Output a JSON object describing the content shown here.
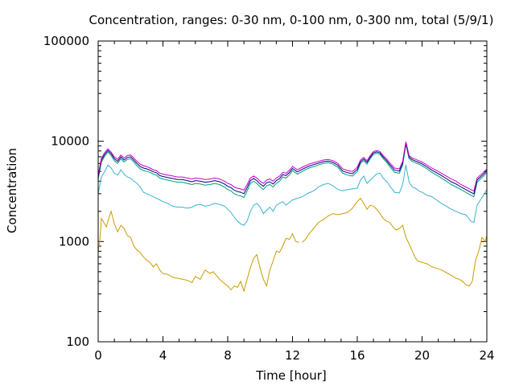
{
  "chart_data": {
    "type": "line",
    "title": "Concentration, ranges: 0-30 nm, 0-100 nm, 0-300 nm, total (5/9/1)",
    "xlabel": "Time [hour]",
    "ylabel": "Concentration",
    "xlim": [
      0,
      24
    ],
    "ylim": [
      100,
      100000
    ],
    "yscale": "log",
    "xticks": [
      "0",
      "4",
      "8",
      "12",
      "16",
      "20",
      "24"
    ],
    "yticks": [
      "100",
      "1000",
      "10000",
      "100000"
    ],
    "grid": false,
    "legend": "none",
    "series": [
      {
        "color": "#cc9a00",
        "x": [
          0,
          0.1,
          0.2,
          0.3,
          0.5,
          0.7,
          0.8,
          1.0,
          1.2,
          1.4,
          1.6,
          1.8,
          2.0,
          2.2,
          2.4,
          2.6,
          2.8,
          3.0,
          3.2,
          3.4,
          3.6,
          3.8,
          4.0,
          4.3,
          4.6,
          4.9,
          5.2,
          5.5,
          5.8,
          6.0,
          6.3,
          6.6,
          6.9,
          7.1,
          7.3,
          7.5,
          7.8,
          8.0,
          8.2,
          8.4,
          8.6,
          8.8,
          9.0,
          9.2,
          9.4,
          9.6,
          9.8,
          10.0,
          10.2,
          10.4,
          10.6,
          10.8,
          11.0,
          11.2,
          11.4,
          11.6,
          11.8,
          12.0,
          12.2,
          12.4,
          12.5,
          12.6,
          12.8,
          13.0,
          13.3,
          13.6,
          13.9,
          14.2,
          14.5,
          14.8,
          15.1,
          15.4,
          15.7,
          16.0,
          16.2,
          16.4,
          16.6,
          16.8,
          17.0,
          17.2,
          17.4,
          17.6,
          17.8,
          18.0,
          18.2,
          18.4,
          18.6,
          18.8,
          19.0,
          19.2,
          19.4,
          19.6,
          19.8,
          20.0,
          20.3,
          20.6,
          20.9,
          21.2,
          21.5,
          21.8,
          22.1,
          22.3,
          22.5,
          22.7,
          22.9,
          23.1,
          23.3,
          23.5,
          23.7,
          23.9,
          24.0
        ],
        "values": [
          800,
          1000,
          1700,
          1600,
          1400,
          1800,
          2000,
          1500,
          1250,
          1450,
          1350,
          1150,
          1100,
          900,
          820,
          780,
          700,
          650,
          620,
          560,
          600,
          520,
          480,
          470,
          440,
          430,
          420,
          410,
          390,
          450,
          420,
          520,
          480,
          500,
          460,
          420,
          380,
          360,
          330,
          360,
          350,
          400,
          320,
          420,
          550,
          680,
          740,
          540,
          420,
          360,
          520,
          640,
          800,
          780,
          900,
          1080,
          1050,
          1200,
          1000,
          980,
          null,
          980,
          1050,
          1180,
          1350,
          1550,
          1650,
          1800,
          1900,
          1850,
          1900,
          1950,
          2150,
          2500,
          2700,
          2400,
          2100,
          2300,
          2250,
          2100,
          1900,
          1700,
          1600,
          1550,
          1400,
          1300,
          1350,
          1450,
          1100,
          950,
          800,
          680,
          630,
          620,
          600,
          560,
          540,
          520,
          490,
          460,
          430,
          420,
          400,
          370,
          360,
          400,
          650,
          800,
          1100,
          1000,
          1150
        ]
      },
      {
        "color": "#3ab0d8",
        "x": [
          0,
          0.2,
          0.4,
          0.6,
          0.8,
          1.0,
          1.2,
          1.4,
          1.6,
          1.8,
          2.0,
          2.2,
          2.4,
          2.6,
          2.8,
          3.0,
          3.2,
          3.4,
          3.6,
          3.8,
          4.0,
          4.3,
          4.6,
          4.9,
          5.2,
          5.5,
          5.8,
          6.0,
          6.3,
          6.6,
          6.9,
          7.2,
          7.5,
          7.8,
          8.0,
          8.2,
          8.4,
          8.6,
          8.8,
          9.0,
          9.2,
          9.4,
          9.6,
          9.8,
          10.0,
          10.2,
          10.4,
          10.6,
          10.8,
          11.0,
          11.2,
          11.4,
          11.6,
          11.8,
          12.0,
          12.3,
          12.6,
          13.0,
          13.3,
          13.6,
          13.9,
          14.2,
          14.5,
          14.8,
          15.1,
          15.4,
          15.7,
          16.0,
          16.2,
          16.4,
          16.6,
          16.8,
          17.0,
          17.2,
          17.4,
          17.6,
          17.8,
          18.0,
          18.3,
          18.6,
          18.8,
          19.0,
          19.2,
          19.4,
          19.6,
          19.8,
          20.0,
          20.3,
          20.6,
          20.9,
          21.2,
          21.5,
          21.8,
          22.1,
          22.4,
          22.7,
          23.0,
          23.2,
          23.4,
          23.6,
          23.8,
          24.0
        ],
        "values": [
          3000,
          4400,
          5000,
          5800,
          5400,
          4800,
          4600,
          5200,
          4700,
          4400,
          4300,
          4000,
          3800,
          3500,
          3100,
          3000,
          2900,
          2800,
          2700,
          2600,
          2500,
          2400,
          2250,
          2200,
          2200,
          2150,
          2200,
          2300,
          2350,
          2250,
          2300,
          2400,
          2350,
          2250,
          2100,
          1950,
          1750,
          1600,
          1500,
          1450,
          1600,
          2000,
          2300,
          2400,
          2200,
          1900,
          2050,
          2200,
          2000,
          2300,
          2400,
          2500,
          2300,
          2450,
          2600,
          2700,
          2800,
          3050,
          3200,
          3500,
          3700,
          3800,
          3600,
          3300,
          3200,
          3300,
          3350,
          3400,
          4100,
          4500,
          3800,
          4100,
          4400,
          4700,
          4800,
          4300,
          4000,
          3600,
          3100,
          3050,
          3700,
          5800,
          3900,
          3500,
          3400,
          3200,
          3100,
          2900,
          2800,
          2600,
          2400,
          2250,
          2100,
          2000,
          1900,
          1850,
          1600,
          1550,
          2300,
          2600,
          2900,
          3300
        ]
      },
      {
        "color": "#009e73",
        "x": [
          0,
          0.2,
          0.4,
          0.6,
          0.8,
          1.0,
          1.2,
          1.4,
          1.6,
          1.8,
          2.0,
          2.2,
          2.4,
          2.6,
          2.8,
          3.0,
          3.2,
          3.4,
          3.6,
          3.8,
          4.0,
          4.3,
          4.6,
          4.9,
          5.2,
          5.5,
          5.8,
          6.0,
          6.3,
          6.6,
          6.9,
          7.2,
          7.5,
          7.8,
          8.0,
          8.2,
          8.4,
          8.6,
          8.8,
          9.0,
          9.2,
          9.4,
          9.6,
          9.8,
          10.0,
          10.2,
          10.4,
          10.6,
          10.8,
          11.0,
          11.2,
          11.4,
          11.6,
          11.8,
          12.0,
          12.3,
          12.6,
          13.0,
          13.3,
          13.6,
          13.9,
          14.2,
          14.5,
          14.8,
          15.1,
          15.4,
          15.7,
          16.0,
          16.2,
          16.4,
          16.6,
          16.8,
          17.0,
          17.2,
          17.4,
          17.6,
          17.8,
          18.0,
          18.3,
          18.6,
          18.8,
          19.0,
          19.2,
          19.4,
          19.6,
          19.8,
          20.0,
          20.3,
          20.6,
          20.9,
          21.2,
          21.5,
          21.8,
          22.1,
          22.4,
          22.7,
          23.0,
          23.2,
          23.4,
          23.6,
          23.8,
          24.0
        ],
        "values": [
          4200,
          6200,
          7100,
          7800,
          7200,
          6400,
          6000,
          6700,
          6200,
          6600,
          6700,
          6200,
          5700,
          5300,
          5100,
          5000,
          4900,
          4700,
          4600,
          4300,
          4200,
          4100,
          4000,
          3900,
          3900,
          3800,
          3700,
          3800,
          3750,
          3650,
          3700,
          3800,
          3700,
          3500,
          3300,
          3200,
          3000,
          2900,
          2850,
          2750,
          3200,
          3800,
          4000,
          3800,
          3500,
          3300,
          3600,
          3700,
          3500,
          3800,
          4000,
          4400,
          4300,
          4600,
          5100,
          4700,
          5000,
          5400,
          5600,
          5800,
          6000,
          6100,
          5900,
          5500,
          4800,
          4600,
          4500,
          5000,
          6000,
          6400,
          5900,
          6700,
          7400,
          7600,
          7400,
          6700,
          6200,
          5600,
          4900,
          4800,
          5800,
          9300,
          6700,
          6300,
          6100,
          5900,
          5700,
          5300,
          4900,
          4600,
          4300,
          4000,
          3700,
          3500,
          3300,
          3100,
          2900,
          2800,
          3900,
          4200,
          4500,
          4900
        ]
      },
      {
        "color": "#000080",
        "x": [
          0,
          0.2,
          0.4,
          0.6,
          0.8,
          1.0,
          1.2,
          1.4,
          1.6,
          1.8,
          2.0,
          2.2,
          2.4,
          2.6,
          2.8,
          3.0,
          3.2,
          3.4,
          3.6,
          3.8,
          4.0,
          4.3,
          4.6,
          4.9,
          5.2,
          5.5,
          5.8,
          6.0,
          6.3,
          6.6,
          6.9,
          7.2,
          7.5,
          7.8,
          8.0,
          8.2,
          8.4,
          8.6,
          8.8,
          9.0,
          9.2,
          9.4,
          9.6,
          9.8,
          10.0,
          10.2,
          10.4,
          10.6,
          10.8,
          11.0,
          11.2,
          11.4,
          11.6,
          11.8,
          12.0,
          12.3,
          12.6,
          13.0,
          13.3,
          13.6,
          13.9,
          14.2,
          14.5,
          14.8,
          15.1,
          15.4,
          15.7,
          16.0,
          16.2,
          16.4,
          16.6,
          16.8,
          17.0,
          17.2,
          17.4,
          17.6,
          17.8,
          18.0,
          18.3,
          18.6,
          18.8,
          19.0,
          19.2,
          19.4,
          19.6,
          19.8,
          20.0,
          20.3,
          20.6,
          20.9,
          21.2,
          21.5,
          21.8,
          22.1,
          22.4,
          22.7,
          23.0,
          23.2,
          23.4,
          23.6,
          23.8,
          24.0
        ],
        "values": [
          4400,
          6500,
          7400,
          8100,
          7500,
          6700,
          6300,
          7000,
          6500,
          6900,
          7000,
          6500,
          6000,
          5600,
          5400,
          5300,
          5150,
          4950,
          4850,
          4550,
          4450,
          4350,
          4250,
          4150,
          4150,
          4050,
          3950,
          4050,
          4000,
          3900,
          3950,
          4050,
          3950,
          3750,
          3550,
          3450,
          3250,
          3150,
          3100,
          3000,
          3450,
          4050,
          4250,
          4050,
          3750,
          3550,
          3850,
          3950,
          3750,
          4050,
          4250,
          4650,
          4550,
          4850,
          5350,
          4950,
          5250,
          5650,
          5850,
          6050,
          6250,
          6350,
          6150,
          5750,
          5050,
          4850,
          4750,
          5250,
          6250,
          6650,
          6150,
          6950,
          7650,
          7850,
          7650,
          6950,
          6450,
          5850,
          5150,
          5050,
          6050,
          9600,
          6950,
          6550,
          6350,
          6150,
          5950,
          5550,
          5150,
          4850,
          4550,
          4250,
          3950,
          3750,
          3500,
          3300,
          3100,
          3000,
          4100,
          4400,
          4700,
          5100
        ]
      },
      {
        "color": "#cc00cc",
        "x": [
          0,
          0.2,
          0.4,
          0.6,
          0.8,
          1.0,
          1.2,
          1.4,
          1.6,
          1.8,
          2.0,
          2.2,
          2.4,
          2.6,
          2.8,
          3.0,
          3.2,
          3.4,
          3.6,
          3.8,
          4.0,
          4.3,
          4.6,
          4.9,
          5.2,
          5.5,
          5.8,
          6.0,
          6.3,
          6.6,
          6.9,
          7.2,
          7.5,
          7.8,
          8.0,
          8.2,
          8.4,
          8.6,
          8.8,
          9.0,
          9.2,
          9.4,
          9.6,
          9.8,
          10.0,
          10.2,
          10.4,
          10.6,
          10.8,
          11.0,
          11.2,
          11.4,
          11.6,
          11.8,
          12.0,
          12.3,
          12.6,
          13.0,
          13.3,
          13.6,
          13.9,
          14.2,
          14.5,
          14.8,
          15.1,
          15.4,
          15.7,
          16.0,
          16.2,
          16.4,
          16.6,
          16.8,
          17.0,
          17.2,
          17.4,
          17.6,
          17.8,
          18.0,
          18.3,
          18.6,
          18.8,
          19.0,
          19.2,
          19.4,
          19.6,
          19.8,
          20.0,
          20.3,
          20.6,
          20.9,
          21.2,
          21.5,
          21.8,
          22.1,
          22.4,
          22.7,
          23.0,
          23.2,
          23.4,
          23.6,
          23.8,
          24.0
        ],
        "values": [
          4600,
          6800,
          7700,
          8400,
          7800,
          7000,
          6600,
          7300,
          6800,
          7200,
          7300,
          6800,
          6300,
          5900,
          5700,
          5600,
          5400,
          5200,
          5100,
          4800,
          4700,
          4600,
          4500,
          4400,
          4400,
          4300,
          4200,
          4300,
          4250,
          4150,
          4200,
          4300,
          4200,
          4000,
          3800,
          3700,
          3500,
          3400,
          3350,
          3250,
          3700,
          4300,
          4500,
          4300,
          4000,
          3800,
          4100,
          4200,
          4000,
          4300,
          4500,
          4900,
          4800,
          5100,
          5600,
          5200,
          5500,
          5900,
          6100,
          6300,
          6500,
          6600,
          6400,
          6000,
          5300,
          5100,
          5000,
          5500,
          6500,
          6900,
          6400,
          7200,
          7900,
          8100,
          7900,
          7200,
          6700,
          6100,
          5400,
          5300,
          6300,
          9900,
          7200,
          6800,
          6600,
          6400,
          6200,
          5800,
          5400,
          5100,
          4800,
          4500,
          4200,
          4000,
          3700,
          3500,
          3300,
          3200,
          4300,
          4600,
          4900,
          5300
        ]
      }
    ]
  }
}
